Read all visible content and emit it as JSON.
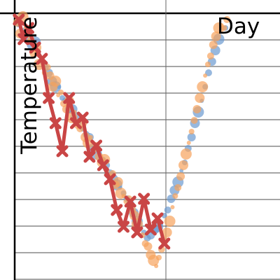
{
  "chart_data": {
    "type": "scatter",
    "xlabel": "Day",
    "ylabel": "Temperature",
    "grid": "horizontal",
    "xlim": [
      0.0,
      3.9
    ],
    "ylim": [
      -0.5,
      9.0
    ],
    "colors": {
      "line_series": "#c94545",
      "blue_points": "#6b9ad0",
      "orange_points": "#f6a35c",
      "grid": "#888888",
      "axes": "#000000"
    },
    "series": [
      {
        "kind": "line",
        "marker": "x",
        "x": [
          0.06,
          0.13,
          0.2,
          0.3,
          0.4,
          0.5,
          0.6,
          0.7,
          0.8,
          0.9,
          1.0,
          1.1,
          1.2,
          1.3,
          1.4,
          1.5,
          1.6,
          1.7,
          1.8,
          1.9,
          2.0,
          2.1,
          2.2
        ],
        "y": [
          8.8,
          8.1,
          8.5,
          7.8,
          7.4,
          6.0,
          5.1,
          4.1,
          6.0,
          5.1,
          5.3,
          3.9,
          4.3,
          3.6,
          3.1,
          2.0,
          1.4,
          2.3,
          1.2,
          2.4,
          1.3,
          1.7,
          0.8
        ]
      },
      {
        "kind": "scatter",
        "x": [
          0.05,
          0.1,
          0.15,
          0.2,
          0.25,
          0.3,
          0.35,
          0.4,
          0.45,
          0.5,
          0.55,
          0.6,
          0.65,
          0.7,
          0.75,
          0.8,
          0.85,
          0.9,
          0.95,
          1.0,
          1.05,
          1.1,
          1.15,
          1.2,
          1.25,
          1.3,
          1.35,
          1.4,
          1.45,
          1.5,
          1.55,
          1.6,
          1.65,
          1.7,
          1.75,
          1.8,
          1.85,
          1.9,
          1.95,
          2.0,
          2.05,
          2.1,
          2.15,
          2.2,
          2.25,
          2.3,
          2.35,
          2.4,
          2.45,
          2.5,
          2.55,
          2.6,
          2.65,
          2.7,
          2.75,
          2.8,
          2.85,
          2.9,
          2.95,
          3.0,
          3.05,
          3.1
        ],
        "y": [
          8.6,
          8.9,
          8.4,
          8.2,
          7.9,
          8.0,
          7.7,
          7.3,
          7.1,
          6.9,
          6.6,
          6.4,
          6.4,
          6.0,
          5.9,
          5.6,
          5.6,
          5.3,
          5.1,
          4.9,
          4.7,
          4.6,
          4.2,
          4.0,
          4.0,
          3.8,
          3.6,
          3.3,
          3.1,
          2.9,
          2.8,
          2.6,
          2.4,
          2.2,
          1.9,
          1.6,
          1.5,
          1.2,
          1.0,
          1.1,
          1.3,
          1.4,
          1.5,
          1.8,
          2.0,
          2.4,
          2.7,
          3.0,
          3.4,
          3.7,
          4.2,
          4.6,
          5.1,
          5.5,
          5.9,
          6.4,
          6.9,
          7.3,
          7.7,
          8.1,
          8.5,
          8.5
        ]
      },
      {
        "kind": "scatter",
        "x": [
          0.04,
          0.08,
          0.12,
          0.16,
          0.2,
          0.24,
          0.28,
          0.32,
          0.36,
          0.4,
          0.44,
          0.48,
          0.52,
          0.56,
          0.6,
          0.64,
          0.68,
          0.72,
          0.76,
          0.8,
          0.84,
          0.88,
          0.92,
          0.96,
          1.0,
          1.04,
          1.08,
          1.12,
          1.16,
          1.2,
          1.24,
          1.28,
          1.32,
          1.36,
          1.4,
          1.44,
          1.48,
          1.52,
          1.56,
          1.6,
          1.64,
          1.68,
          1.72,
          1.76,
          1.8,
          1.84,
          1.88,
          1.92,
          1.96,
          2.0,
          2.04,
          2.08,
          2.12,
          2.16,
          2.2,
          2.24,
          2.28,
          2.32,
          2.36,
          2.4,
          2.44,
          2.48,
          2.52,
          2.56,
          2.6,
          2.64,
          2.68,
          2.72,
          2.76,
          2.8,
          2.84,
          2.88,
          2.92,
          2.96,
          3.0,
          3.04,
          3.08,
          3.12
        ],
        "y": [
          8.7,
          8.3,
          8.9,
          8.5,
          8.0,
          8.1,
          7.6,
          7.8,
          7.2,
          7.4,
          6.9,
          7.1,
          6.8,
          6.4,
          6.6,
          6.1,
          6.2,
          5.8,
          5.6,
          5.9,
          5.3,
          5.5,
          5.0,
          4.9,
          5.1,
          4.6,
          4.4,
          4.6,
          4.1,
          4.3,
          3.9,
          3.7,
          3.8,
          3.4,
          3.2,
          3.3,
          2.9,
          3.0,
          2.6,
          2.5,
          2.3,
          2.4,
          2.0,
          1.8,
          1.5,
          1.3,
          1.1,
          0.8,
          0.7,
          0.4,
          0.2,
          0.0,
          0.3,
          0.6,
          0.9,
          1.2,
          1.6,
          2.1,
          2.5,
          2.8,
          3.2,
          3.6,
          4.0,
          4.4,
          4.8,
          5.2,
          5.6,
          6.0,
          6.4,
          6.8,
          7.2,
          7.5,
          7.9,
          8.2,
          8.5,
          8.6,
          8.5,
          8.8
        ]
      }
    ]
  }
}
